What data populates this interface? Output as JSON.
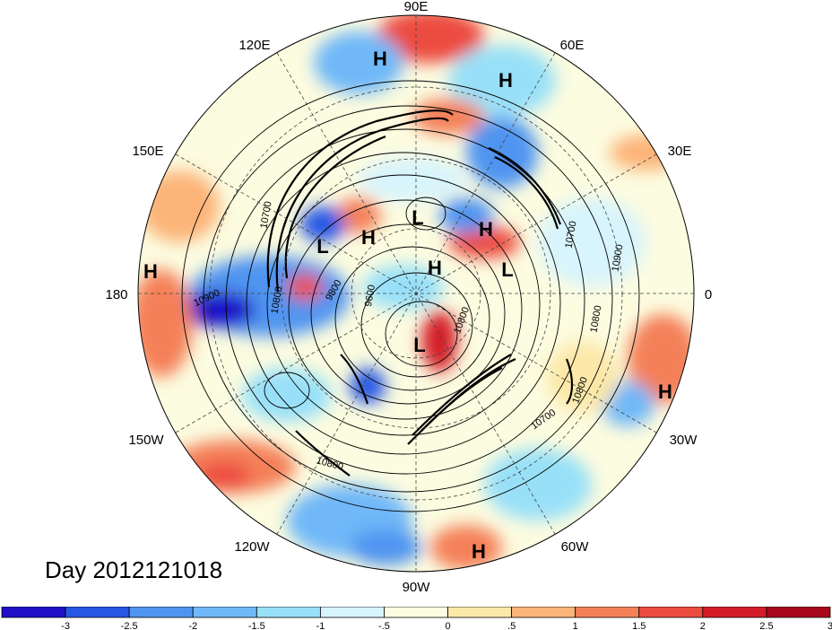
{
  "title": "Day 2012121018",
  "longitude_labels": [
    "90E",
    "60E",
    "30E",
    "0",
    "30W",
    "60W",
    "90W",
    "120W",
    "150W",
    "180",
    "150E",
    "120E"
  ],
  "pressure_centers": [
    {
      "label": "H",
      "name": "high-siberia-north"
    },
    {
      "label": "H",
      "name": "high-central-asia"
    },
    {
      "label": "H",
      "name": "high-dateline"
    },
    {
      "label": "H",
      "name": "high-atlantic-east"
    },
    {
      "label": "H",
      "name": "high-caribbean"
    },
    {
      "label": "H",
      "name": "high-arctic-siberia"
    },
    {
      "label": "H",
      "name": "high-arctic-russia"
    },
    {
      "label": "H",
      "name": "high-arctic-pole"
    },
    {
      "label": "L",
      "name": "low-arctic-pole"
    },
    {
      "label": "L",
      "name": "low-east-siberia"
    },
    {
      "label": "L",
      "name": "low-scandinavia"
    },
    {
      "label": "L",
      "name": "low-hudson-bay"
    }
  ],
  "contour_labels": [
    "10900",
    "10800",
    "10700",
    "9800",
    "9600",
    "10700",
    "10900",
    "10800",
    "10800",
    "10700",
    "10800",
    "10800"
  ],
  "colorbar": {
    "colors": [
      "#1f10c8",
      "#2756e4",
      "#4f94f0",
      "#70b8f8",
      "#98e0f8",
      "#d8f4fc",
      "#fcfce0",
      "#fce8a8",
      "#fcb478",
      "#f48058",
      "#ec4c40",
      "#d41c28",
      "#a8081c"
    ],
    "tick_labels": [
      "-3",
      "-2.5",
      "-2",
      "-1.5",
      "-1",
      "-.5",
      "0",
      ".5",
      "1",
      "1.5",
      "2",
      "2.5",
      "3"
    ]
  }
}
